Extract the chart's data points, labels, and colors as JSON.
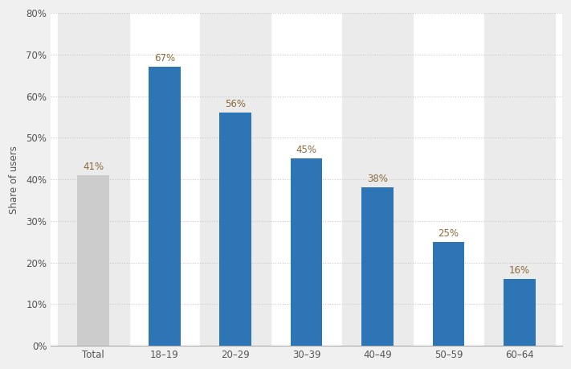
{
  "categories": [
    "Total",
    "18–19",
    "20–29",
    "30–39",
    "40–49",
    "50–59",
    "60–64"
  ],
  "values": [
    41,
    67,
    56,
    45,
    38,
    25,
    16
  ],
  "bar_colors": [
    "#cccccc",
    "#2e75b6",
    "#2e75b6",
    "#2e75b6",
    "#2e75b6",
    "#2e75b6",
    "#2e75b6"
  ],
  "ylabel": "Share of users",
  "ylim": [
    0,
    80
  ],
  "yticks": [
    0,
    10,
    20,
    30,
    40,
    50,
    60,
    70,
    80
  ],
  "label_color": "#8c6a3c",
  "grid_color": "#c8c8c8",
  "background_color": "#f0f0f0",
  "plot_bg_color": "#ffffff",
  "col_shade_color": "#ebebeb",
  "bar_width": 0.45,
  "label_fontsize": 8.5,
  "tick_fontsize": 8.5,
  "ylabel_fontsize": 8.5,
  "shaded_cols": [
    0,
    2,
    4,
    6
  ]
}
